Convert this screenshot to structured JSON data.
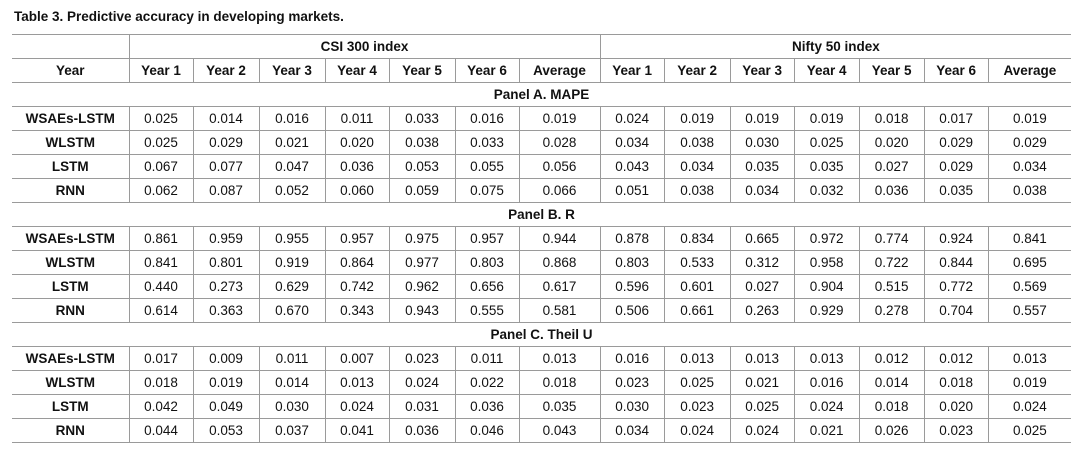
{
  "caption": "Table 3.  Predictive accuracy in developing markets.",
  "header": {
    "year_label": "Year",
    "group_csi": "CSI 300 index",
    "group_nifty": "Nifty 50 index",
    "columns": [
      "Year 1",
      "Year 2",
      "Year 3",
      "Year 4",
      "Year 5",
      "Year 6",
      "Average"
    ]
  },
  "panels": [
    {
      "title": "Panel A. MAPE",
      "rows": [
        {
          "model": "WSAEs-LSTM",
          "csi": [
            "0.025",
            "0.014",
            "0.016",
            "0.011",
            "0.033",
            "0.016",
            "0.019"
          ],
          "nifty": [
            "0.024",
            "0.019",
            "0.019",
            "0.019",
            "0.018",
            "0.017",
            "0.019"
          ]
        },
        {
          "model": "WLSTM",
          "csi": [
            "0.025",
            "0.029",
            "0.021",
            "0.020",
            "0.038",
            "0.033",
            "0.028"
          ],
          "nifty": [
            "0.034",
            "0.038",
            "0.030",
            "0.025",
            "0.020",
            "0.029",
            "0.029"
          ]
        },
        {
          "model": "LSTM",
          "csi": [
            "0.067",
            "0.077",
            "0.047",
            "0.036",
            "0.053",
            "0.055",
            "0.056"
          ],
          "nifty": [
            "0.043",
            "0.034",
            "0.035",
            "0.035",
            "0.027",
            "0.029",
            "0.034"
          ]
        },
        {
          "model": "RNN",
          "csi": [
            "0.062",
            "0.087",
            "0.052",
            "0.060",
            "0.059",
            "0.075",
            "0.066"
          ],
          "nifty": [
            "0.051",
            "0.038",
            "0.034",
            "0.032",
            "0.036",
            "0.035",
            "0.038"
          ]
        }
      ]
    },
    {
      "title": "Panel B. R",
      "rows": [
        {
          "model": "WSAEs-LSTM",
          "csi": [
            "0.861",
            "0.959",
            "0.955",
            "0.957",
            "0.975",
            "0.957",
            "0.944"
          ],
          "nifty": [
            "0.878",
            "0.834",
            "0.665",
            "0.972",
            "0.774",
            "0.924",
            "0.841"
          ]
        },
        {
          "model": "WLSTM",
          "csi": [
            "0.841",
            "0.801",
            "0.919",
            "0.864",
            "0.977",
            "0.803",
            "0.868"
          ],
          "nifty": [
            "0.803",
            "0.533",
            "0.312",
            "0.958",
            "0.722",
            "0.844",
            "0.695"
          ]
        },
        {
          "model": "LSTM",
          "csi": [
            "0.440",
            "0.273",
            "0.629",
            "0.742",
            "0.962",
            "0.656",
            "0.617"
          ],
          "nifty": [
            "0.596",
            "0.601",
            "0.027",
            "0.904",
            "0.515",
            "0.772",
            "0.569"
          ]
        },
        {
          "model": "RNN",
          "csi": [
            "0.614",
            "0.363",
            "0.670",
            "0.343",
            "0.943",
            "0.555",
            "0.581"
          ],
          "nifty": [
            "0.506",
            "0.661",
            "0.263",
            "0.929",
            "0.278",
            "0.704",
            "0.557"
          ]
        }
      ]
    },
    {
      "title": "Panel C. Theil U",
      "rows": [
        {
          "model": "WSAEs-LSTM",
          "csi": [
            "0.017",
            "0.009",
            "0.011",
            "0.007",
            "0.023",
            "0.011",
            "0.013"
          ],
          "nifty": [
            "0.016",
            "0.013",
            "0.013",
            "0.013",
            "0.012",
            "0.012",
            "0.013"
          ]
        },
        {
          "model": "WLSTM",
          "csi": [
            "0.018",
            "0.019",
            "0.014",
            "0.013",
            "0.024",
            "0.022",
            "0.018"
          ],
          "nifty": [
            "0.023",
            "0.025",
            "0.021",
            "0.016",
            "0.014",
            "0.018",
            "0.019"
          ]
        },
        {
          "model": "LSTM",
          "csi": [
            "0.042",
            "0.049",
            "0.030",
            "0.024",
            "0.031",
            "0.036",
            "0.035"
          ],
          "nifty": [
            "0.030",
            "0.023",
            "0.025",
            "0.024",
            "0.018",
            "0.020",
            "0.024"
          ]
        },
        {
          "model": "RNN",
          "csi": [
            "0.044",
            "0.053",
            "0.037",
            "0.041",
            "0.036",
            "0.046",
            "0.043"
          ],
          "nifty": [
            "0.034",
            "0.024",
            "0.024",
            "0.021",
            "0.026",
            "0.023",
            "0.025"
          ]
        }
      ]
    }
  ]
}
